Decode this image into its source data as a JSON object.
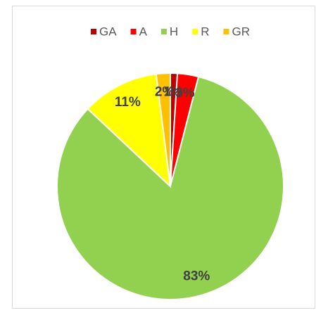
{
  "chart_data": {
    "type": "pie",
    "categories": [
      "GA",
      "A",
      "H",
      "R",
      "GR"
    ],
    "values": [
      1,
      3,
      83,
      11,
      2
    ],
    "value_labels": [
      "1%",
      "3%",
      "83%",
      "11%",
      "2%"
    ],
    "colors": [
      "#c00000",
      "#ff0000",
      "#92d050",
      "#ffff00",
      "#ffc000"
    ],
    "legend": "top"
  }
}
